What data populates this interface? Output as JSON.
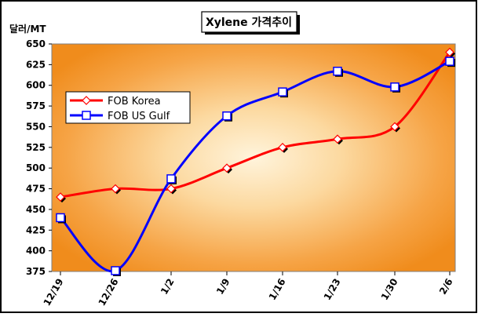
{
  "chart_data": {
    "type": "line",
    "title": "Xylene 가격추이",
    "ylabel": "달러/MT",
    "xlabel": "",
    "categories": [
      "12/19",
      "12/26",
      "1/2",
      "1/9",
      "1/16",
      "1/23",
      "1/30",
      "2/6"
    ],
    "yticks": [
      "650",
      "625",
      "600",
      "575",
      "550",
      "525",
      "500",
      "475",
      "450",
      "425",
      "400",
      "375"
    ],
    "ylim": [
      375,
      650
    ],
    "grid": false,
    "legend_position": "upper-left",
    "series": [
      {
        "name": "FOB Korea",
        "color": "#ff0000",
        "marker": "diamond",
        "values": [
          465,
          475,
          475,
          500,
          525,
          535,
          550,
          640
        ]
      },
      {
        "name": "FOB US Gulf",
        "color": "#0000ff",
        "marker": "square",
        "values": [
          440,
          376,
          487,
          563,
          592,
          617,
          598,
          629
        ]
      }
    ],
    "plot_background": "radial gradient light cream center to orange edges"
  }
}
